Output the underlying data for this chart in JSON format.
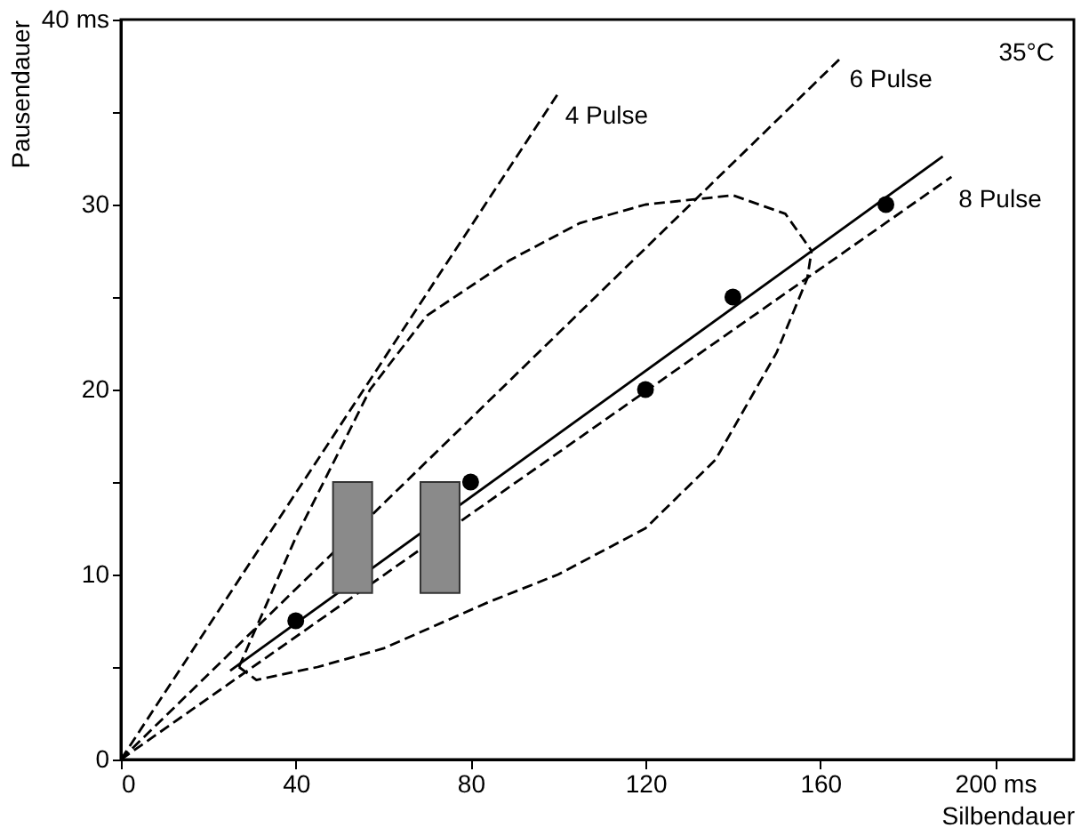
{
  "chart_data": {
    "type": "line",
    "xlabel": "Silbendauer",
    "ylabel": "Pausendauer",
    "xlim": [
      0,
      218
    ],
    "ylim": [
      0,
      40
    ],
    "xticks": [
      0,
      40,
      80,
      120,
      160,
      {
        "value": 200,
        "label": "200  ms"
      }
    ],
    "yticks": [
      0,
      {
        "value": 5,
        "label": null
      },
      10,
      {
        "value": 15,
        "label": null
      },
      20,
      {
        "value": 25,
        "label": null
      },
      30,
      {
        "value": 35,
        "label": null
      },
      {
        "value": 40,
        "label": "40 ms"
      }
    ],
    "grid": false,
    "annotations": [
      "35°C"
    ],
    "series": [
      {
        "name": "4 Pulse",
        "line_style": "dashed",
        "color": "#000000",
        "x": [
          0,
          100
        ],
        "values": [
          0,
          36
        ]
      },
      {
        "name": "6 Pulse",
        "line_style": "dashed",
        "color": "#000000",
        "x": [
          0,
          165
        ],
        "values": [
          0,
          38
        ]
      },
      {
        "name": "8 Pulse",
        "line_style": "dashed",
        "color": "#000000",
        "x": [
          0,
          190
        ],
        "values": [
          0,
          31.5
        ]
      },
      {
        "line_style": "solid",
        "color": "#000000",
        "x": [
          25,
          188
        ],
        "values": [
          4.8,
          32.6
        ]
      },
      {
        "line_style": "dashed",
        "color": "#000000",
        "x": [
          27,
          40,
          57,
          70,
          89,
          105,
          120,
          140,
          152,
          158
        ],
        "values": [
          5,
          12,
          20,
          24,
          27,
          29,
          30,
          30.5,
          29.5,
          27.5
        ]
      },
      {
        "line_style": "dashed",
        "color": "#000000",
        "x": [
          27,
          31,
          45,
          60,
          84,
          100,
          120,
          136,
          150,
          157,
          158
        ],
        "values": [
          5,
          4.3,
          5,
          6,
          8.5,
          10,
          12.5,
          16.2,
          22,
          26,
          27.5
        ]
      },
      {
        "type": "scatter",
        "marker": "circle",
        "color": "#000000",
        "x": [
          40,
          80,
          120,
          140,
          175
        ],
        "values": [
          7.5,
          15,
          20,
          25,
          30
        ]
      },
      {
        "type": "bar",
        "color": "#8a8a8a",
        "x": [
          53,
          73
        ],
        "base": [
          9,
          9
        ],
        "values": [
          6,
          6
        ]
      }
    ]
  }
}
